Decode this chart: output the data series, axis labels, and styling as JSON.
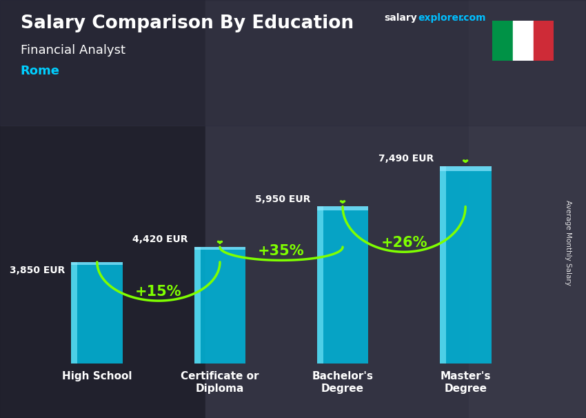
{
  "title": "Salary Comparison By Education",
  "subtitle": "Financial Analyst",
  "city": "Rome",
  "ylabel": "Average Monthly Salary",
  "categories": [
    "High School",
    "Certificate or\nDiploma",
    "Bachelor's\nDegree",
    "Master's\nDegree"
  ],
  "values": [
    3850,
    4420,
    5950,
    7490
  ],
  "value_labels": [
    "3,850 EUR",
    "4,420 EUR",
    "5,950 EUR",
    "7,490 EUR"
  ],
  "pct_labels": [
    "+15%",
    "+35%",
    "+26%"
  ],
  "bar_color_main": "#00B4D8",
  "bar_color_light": "#48CAE4",
  "bar_color_side": "#0077B6",
  "background_color": "#3a3a4a",
  "title_color": "#FFFFFF",
  "subtitle_color": "#FFFFFF",
  "city_color": "#00CFFF",
  "value_color": "#FFFFFF",
  "pct_color": "#7FFF00",
  "arrow_color": "#7FFF00",
  "ylim": [
    0,
    9500
  ],
  "italy_flag_colors": [
    "#009246",
    "#FFFFFF",
    "#CE2B37"
  ],
  "brand_text": "salaryexplorer.com"
}
